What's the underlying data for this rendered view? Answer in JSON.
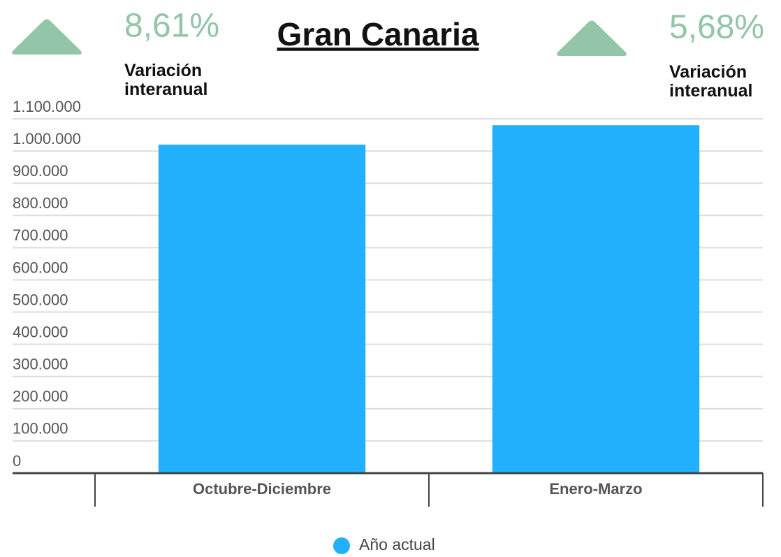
{
  "chart_data": {
    "type": "bar",
    "title": "Gran Canaria",
    "indicators": [
      {
        "value_label": "8,61%",
        "caption": "Variación interanual"
      },
      {
        "value_label": "5,68%",
        "caption": "Variación interanual"
      }
    ],
    "categories": [
      "Octubre-Diciembre",
      "Enero-Marzo"
    ],
    "series": [
      {
        "name": "Año actual",
        "color": "#22b0fc",
        "values": [
          1020000,
          1080000
        ]
      }
    ],
    "ylim": [
      0,
      1100000
    ],
    "yticks": [
      0,
      {
        "value": 100000,
        "label": "100.000"
      },
      {
        "value": 200000,
        "label": "200.000"
      },
      {
        "value": 300000,
        "label": "300.000"
      },
      {
        "value": 400000,
        "label": "400.000"
      },
      {
        "value": 500000,
        "label": "500.000"
      },
      {
        "value": 600000,
        "label": "600.000"
      },
      {
        "value": 700000,
        "label": "700.000"
      },
      {
        "value": 800000,
        "label": "800.000"
      },
      {
        "value": 900000,
        "label": "900.000"
      },
      {
        "value": 1000000,
        "label": "1.000.000"
      },
      {
        "value": 1100000,
        "label": "1.100.000"
      }
    ],
    "grid": true,
    "legend": "bottom"
  }
}
